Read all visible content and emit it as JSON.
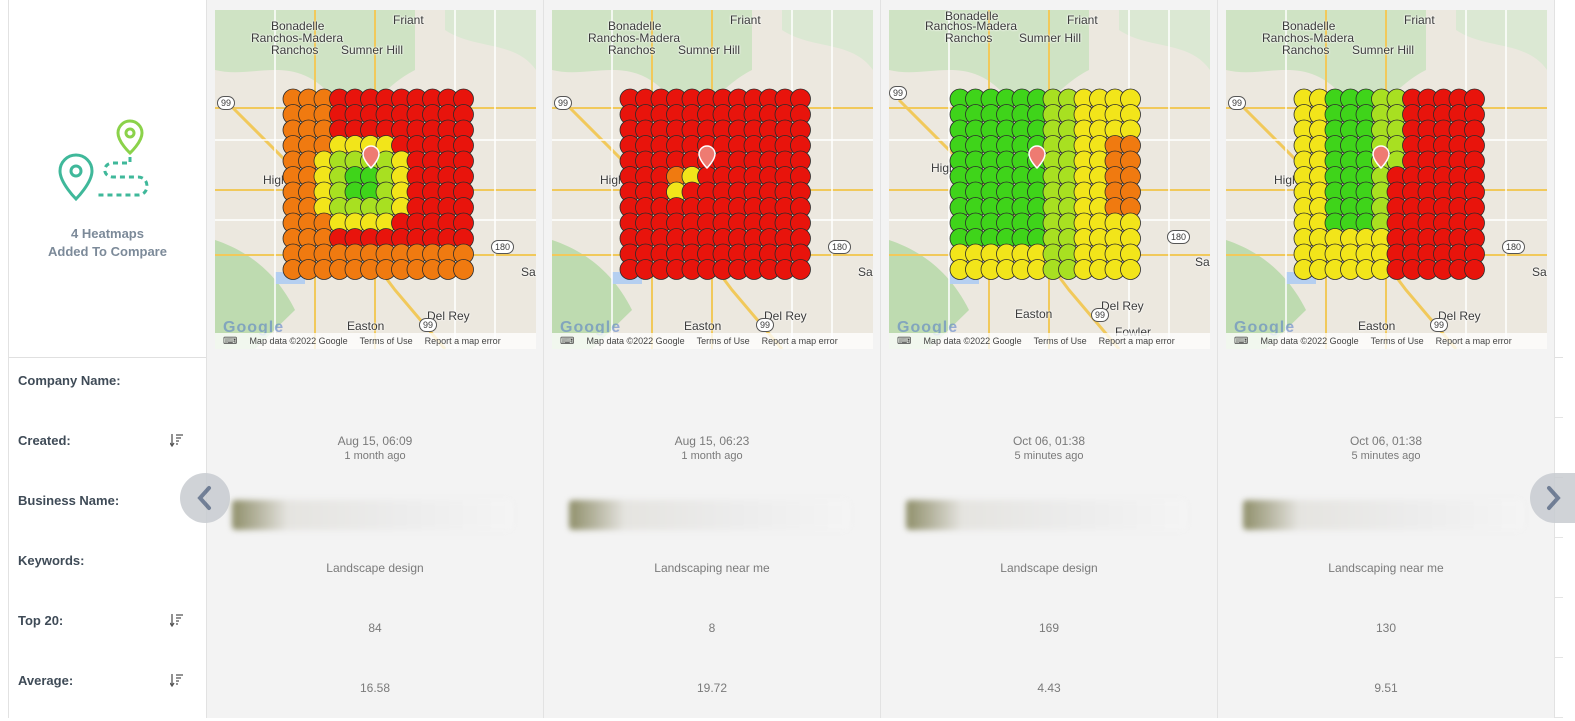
{
  "intro": {
    "count_line1": "4 Heatmaps",
    "count_line2": "Added To Compare"
  },
  "map_footer": {
    "data": "Map data ©2022 Google",
    "terms": "Terms of Use",
    "report": "Report a map error"
  },
  "maps": [
    {
      "labels": [
        "Bonadelle",
        "Ranchos-Madera",
        "Ranchos",
        "Friant",
        "Sumner Hill",
        "High",
        "Easton",
        "Del Rey",
        "San",
        "99",
        "180",
        "99"
      ],
      "grid_sample": "mostly red 20s with orange/yellow/green near pin"
    },
    {
      "labels": [
        "Bonadelle",
        "Ranchos-Madera",
        "Ranchos",
        "Friant",
        "Sumner Hill",
        "High",
        "Easton",
        "Del Rey",
        "San",
        "99",
        "180",
        "99"
      ]
    },
    {
      "labels": [
        "Bonadelle",
        "Ranchos-Madera",
        "Ranchos",
        "Friant",
        "Sumner Hill",
        "High",
        "Easton",
        "Del Rey",
        "Sang",
        "Fowler",
        "99",
        "180",
        "99"
      ]
    },
    {
      "labels": [
        "Bonadelle",
        "Ranchos-Madera",
        "Ranchos",
        "Friant",
        "Sumner Hill",
        "High",
        "Easton",
        "Del Rey",
        "San",
        "99",
        "180",
        "99"
      ]
    }
  ],
  "rows": {
    "company": {
      "label": "Company Name:"
    },
    "created": {
      "label": "Created:",
      "values": [
        {
          "date": "Aug 15, 06:09",
          "ago": "1 month ago"
        },
        {
          "date": "Aug 15, 06:23",
          "ago": "1 month ago"
        },
        {
          "date": "Oct 06, 01:38",
          "ago": "5 minutes ago"
        },
        {
          "date": "Oct 06, 01:38",
          "ago": "5 minutes ago"
        }
      ]
    },
    "business": {
      "label": "Business Name:"
    },
    "keywords": {
      "label": "Keywords:",
      "values": [
        "Landscape design",
        "Landscaping near me",
        "Landscape design",
        "Landscaping near me"
      ]
    },
    "top20": {
      "label": "Top 20:",
      "values": [
        "84",
        "8",
        "169",
        "130"
      ]
    },
    "average": {
      "label": "Average:",
      "values": [
        "16.58",
        "19.72",
        "4.43",
        "9.51"
      ]
    }
  },
  "colors": {
    "red": "#e8140c",
    "orange": "#f07a10",
    "yellow": "#f2e51a",
    "lightgreen": "#a8e021",
    "green": "#3fd41a"
  },
  "icons": {
    "prev": "chevron-left-icon",
    "next": "chevron-right-icon",
    "sort": "sort-icon",
    "pin": "map-pin-icon",
    "route": "route-pins-icon"
  }
}
